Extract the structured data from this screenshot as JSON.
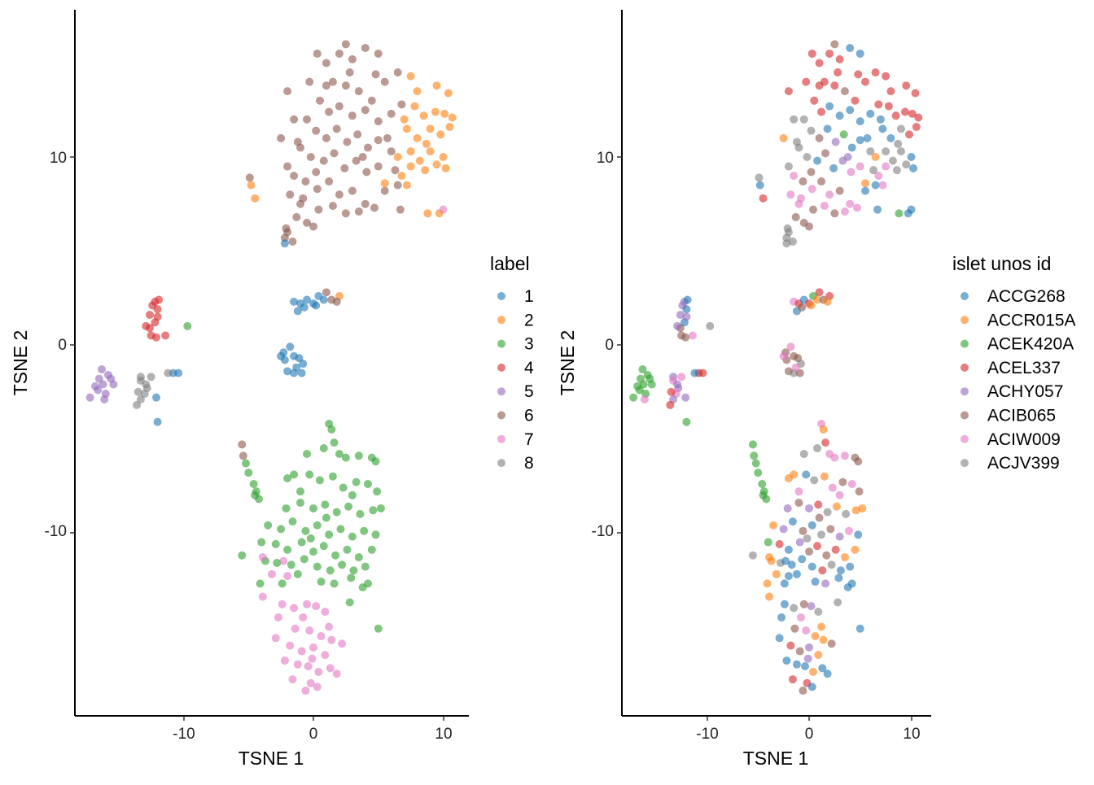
{
  "chart_data": [
    {
      "type": "scatter",
      "xlabel": "TSNE 1",
      "ylabel": "TSNE 2",
      "xlim": [
        -18.4,
        11.9
      ],
      "ylim": [
        -19.7,
        17.8
      ],
      "x_ticks": [
        "-10",
        "0",
        "10"
      ],
      "y_ticks": [
        "-10",
        "0",
        "10"
      ],
      "grid": false,
      "legend_title": "label",
      "legend": [
        "1",
        "2",
        "3",
        "4",
        "5",
        "6",
        "7",
        "8"
      ],
      "legend_placement": "right",
      "color_by": "label"
    },
    {
      "type": "scatter",
      "xlabel": "TSNE 1",
      "ylabel": "TSNE 2",
      "xlim": [
        -18.4,
        11.9
      ],
      "ylim": [
        -19.7,
        17.8
      ],
      "x_ticks": [
        "-10",
        "0",
        "10"
      ],
      "y_ticks": [
        "-10",
        "0",
        "10"
      ],
      "grid": false,
      "legend_title": "islet unos id",
      "legend": [
        "ACCG268",
        "ACCR015A",
        "ACEK420A",
        "ACEL337",
        "ACHY057",
        "ACIB065",
        "ACIW009",
        "ACJV399"
      ],
      "legend_placement": "right",
      "color_by": "islet unos id"
    }
  ],
  "colors": [
    "#1f77b4",
    "#ff7f0e",
    "#2ca02c",
    "#d62728",
    "#9467bd",
    "#8c564b",
    "#e377c2",
    "#7f7f7f"
  ],
  "point_alpha": 0.6,
  "point_fields": [
    "TSNE 1",
    "TSNE 2",
    "label",
    "islet unos id index"
  ],
  "points": [
    [
      -2,
      13.5,
      6,
      3
    ],
    [
      -1.5,
      12,
      6,
      7
    ],
    [
      -2.5,
      11,
      6,
      1
    ],
    [
      -1,
      10.5,
      6,
      7
    ],
    [
      -2,
      9.5,
      6,
      7
    ],
    [
      -1.8,
      8,
      6,
      6
    ],
    [
      -1,
      7.5,
      6,
      6
    ],
    [
      -0.5,
      6.5,
      6,
      5
    ],
    [
      -2,
      6,
      6,
      7
    ],
    [
      -2.2,
      5.7,
      6,
      7
    ],
    [
      0,
      6.3,
      6,
      5
    ],
    [
      -0.3,
      14,
      6,
      3
    ],
    [
      0.3,
      15.5,
      6,
      3
    ],
    [
      1,
      15,
      6,
      3
    ],
    [
      2,
      15.5,
      6,
      3
    ],
    [
      2.5,
      16,
      6,
      5
    ],
    [
      3,
      15.2,
      6,
      3
    ],
    [
      4,
      15.8,
      6,
      0
    ],
    [
      5,
      15.5,
      6,
      0
    ],
    [
      6.5,
      14.5,
      6,
      3
    ],
    [
      1.5,
      14,
      6,
      3
    ],
    [
      2.5,
      13.8,
      6,
      3
    ],
    [
      3.5,
      13.5,
      6,
      5
    ],
    [
      4.5,
      13,
      6,
      3
    ],
    [
      5.5,
      14,
      6,
      3
    ],
    [
      6.8,
      12.8,
      6,
      3
    ],
    [
      0.5,
      13,
      6,
      3
    ],
    [
      1.2,
      12.4,
      6,
      3
    ],
    [
      2,
      12.7,
      6,
      0
    ],
    [
      3,
      12.2,
      6,
      0
    ],
    [
      4,
      12.5,
      6,
      0
    ],
    [
      5,
      11.9,
      6,
      0
    ],
    [
      6,
      12.3,
      6,
      0
    ],
    [
      -0.5,
      12,
      6,
      7
    ],
    [
      0.2,
      11.4,
      6,
      7
    ],
    [
      1,
      11,
      6,
      5
    ],
    [
      1.8,
      11.5,
      6,
      0
    ],
    [
      2.6,
      10.8,
      6,
      4
    ],
    [
      3.4,
      11.2,
      6,
      2
    ],
    [
      4.2,
      10.5,
      6,
      0
    ],
    [
      5,
      10.9,
      6,
      0
    ],
    [
      6,
      10.3,
      6,
      7
    ],
    [
      -1.2,
      10.8,
      6,
      7
    ],
    [
      -0.2,
      10,
      6,
      7
    ],
    [
      0.8,
      9.8,
      6,
      0
    ],
    [
      1.6,
      10.2,
      6,
      5
    ],
    [
      2.4,
      9.4,
      6,
      0
    ],
    [
      3.3,
      9.8,
      6,
      4
    ],
    [
      4.1,
      9.2,
      6,
      6
    ],
    [
      5,
      9.5,
      6,
      6
    ],
    [
      6.3,
      9.3,
      6,
      7
    ],
    [
      -1.5,
      9,
      6,
      6
    ],
    [
      -0.6,
      8.7,
      6,
      5
    ],
    [
      0.3,
      8.3,
      6,
      6
    ],
    [
      1.2,
      8.7,
      6,
      5
    ],
    [
      2,
      8,
      6,
      6
    ],
    [
      3,
      8.2,
      6,
      5
    ],
    [
      4,
      7.5,
      6,
      6
    ],
    [
      5.5,
      8.2,
      6,
      0
    ],
    [
      6.5,
      8.5,
      6,
      0
    ],
    [
      -0.8,
      7.8,
      6,
      6
    ],
    [
      0.4,
      7.2,
      6,
      5
    ],
    [
      1.5,
      7.4,
      6,
      6
    ],
    [
      2.5,
      7,
      6,
      5
    ],
    [
      3.5,
      7.1,
      6,
      6
    ],
    [
      4.7,
      7.3,
      6,
      6
    ],
    [
      6.7,
      7.2,
      6,
      0
    ],
    [
      -1.3,
      6.8,
      6,
      5
    ],
    [
      -2.1,
      6.2,
      6,
      7
    ],
    [
      -1.6,
      5.5,
      6,
      7
    ],
    [
      0.2,
      9.2,
      6,
      5
    ],
    [
      1,
      13.8,
      6,
      3
    ],
    [
      2.8,
      14.5,
      6,
      3
    ],
    [
      4.8,
      14.4,
      6,
      3
    ],
    [
      3.8,
      10,
      6,
      4
    ],
    [
      5.7,
      11,
      6,
      0
    ],
    [
      -4.9,
      8.9,
      6,
      7
    ],
    [
      7.5,
      14.3,
      2,
      3
    ],
    [
      8,
      13.5,
      2,
      3
    ],
    [
      9.5,
      13.8,
      2,
      3
    ],
    [
      10.4,
      13.4,
      2,
      3
    ],
    [
      7.8,
      12.7,
      2,
      3
    ],
    [
      8.5,
      12.2,
      2,
      3
    ],
    [
      9.4,
      12.4,
      2,
      3
    ],
    [
      10.1,
      12.3,
      2,
      3
    ],
    [
      10.7,
      12.1,
      2,
      3
    ],
    [
      7.2,
      11.5,
      2,
      0
    ],
    [
      8,
      11,
      2,
      0
    ],
    [
      9,
      11.5,
      2,
      7
    ],
    [
      9.8,
      11.2,
      2,
      3
    ],
    [
      10.5,
      11.6,
      2,
      3
    ],
    [
      6.5,
      10,
      2,
      1
    ],
    [
      7.5,
      10.3,
      2,
      7
    ],
    [
      8.2,
      9.8,
      2,
      7
    ],
    [
      9,
      10.3,
      2,
      7
    ],
    [
      10,
      10,
      2,
      0
    ],
    [
      6.8,
      9,
      2,
      6
    ],
    [
      7.5,
      9.5,
      2,
      6
    ],
    [
      8.6,
      9.3,
      2,
      7
    ],
    [
      5.5,
      8.6,
      2,
      1
    ],
    [
      7.2,
      8.5,
      2,
      6
    ],
    [
      10.2,
      9.4,
      2,
      0
    ],
    [
      7,
      12,
      2,
      0
    ],
    [
      8.7,
      10.7,
      2,
      7
    ],
    [
      9.5,
      9.6,
      2,
      7
    ],
    [
      -4.8,
      8.5,
      2,
      0
    ],
    [
      -4.5,
      7.8,
      2,
      3
    ],
    [
      8.8,
      7,
      2,
      2
    ],
    [
      9.7,
      7,
      2,
      0
    ],
    [
      2,
      2.6,
      2,
      3
    ],
    [
      10,
      7.2,
      7,
      0
    ],
    [
      -2.2,
      5.4,
      1,
      7
    ],
    [
      -1.5,
      2.3,
      1,
      6
    ],
    [
      -1,
      2.2,
      1,
      3
    ],
    [
      -0.5,
      2.4,
      1,
      0
    ],
    [
      0,
      2.2,
      1,
      3
    ],
    [
      0.4,
      2.6,
      1,
      2
    ],
    [
      0.8,
      2.4,
      1,
      1
    ],
    [
      -1.2,
      1.8,
      1,
      0
    ],
    [
      -0.7,
      2.0,
      1,
      5
    ],
    [
      0.2,
      2.1,
      1,
      1
    ],
    [
      1,
      2.8,
      6,
      3
    ],
    [
      1.4,
      2.4,
      6,
      5
    ],
    [
      1.8,
      2.3,
      6,
      1
    ],
    [
      -2.3,
      -0.4,
      1,
      5
    ],
    [
      -1.8,
      -0.1,
      1,
      6
    ],
    [
      -2.2,
      -0.8,
      1,
      5
    ],
    [
      -1.5,
      -0.6,
      1,
      5
    ],
    [
      -1.1,
      -0.7,
      1,
      5
    ],
    [
      -0.8,
      -1,
      1,
      7
    ],
    [
      -2,
      -1.4,
      1,
      5
    ],
    [
      -1.5,
      -1.5,
      1,
      7
    ],
    [
      -0.9,
      -1.5,
      1,
      5
    ],
    [
      -1.3,
      -1.2,
      1,
      6
    ],
    [
      -2.5,
      -0.6,
      1,
      6
    ],
    [
      -12,
      -4.1,
      1,
      2
    ],
    [
      -10.8,
      -1.5,
      1,
      3
    ],
    [
      -10.4,
      -1.5,
      1,
      3
    ],
    [
      -12.1,
      -2.8,
      1,
      4
    ],
    [
      -12.2,
      2.3,
      4,
      4
    ],
    [
      -11.9,
      2.4,
      4,
      0
    ],
    [
      -12.4,
      2.1,
      4,
      4
    ],
    [
      -12,
      1.9,
      4,
      0
    ],
    [
      -12.6,
      1.6,
      4,
      4
    ],
    [
      -12.2,
      1.2,
      4,
      0
    ],
    [
      -12.6,
      0.9,
      4,
      5
    ],
    [
      -12.9,
      1.0,
      4,
      4
    ],
    [
      -12.5,
      0.5,
      4,
      5
    ],
    [
      -12.1,
      0.4,
      4,
      5
    ],
    [
      -11.4,
      0.5,
      4,
      6
    ],
    [
      -12,
      1.5,
      4,
      4
    ],
    [
      -9.7,
      1.0,
      3,
      7
    ],
    [
      -16.3,
      -1.3,
      5,
      2
    ],
    [
      -15.8,
      -1.6,
      5,
      2
    ],
    [
      -16.5,
      -1.8,
      5,
      2
    ],
    [
      -16.2,
      -2.1,
      5,
      2
    ],
    [
      -16.6,
      -2.4,
      5,
      2
    ],
    [
      -16,
      -2.6,
      5,
      2
    ],
    [
      -15.4,
      -2.1,
      5,
      2
    ],
    [
      -17.2,
      -2.8,
      5,
      2
    ],
    [
      -16.1,
      -2.9,
      5,
      6
    ],
    [
      -16.8,
      -2.2,
      5,
      2
    ],
    [
      -15.6,
      -1.8,
      5,
      2
    ],
    [
      -13.3,
      -1.7,
      8,
      4
    ],
    [
      -13.3,
      -1.9,
      8,
      6
    ],
    [
      -12.5,
      -1.7,
      8,
      6
    ],
    [
      -12.8,
      -2.3,
      8,
      4
    ],
    [
      -13,
      -2.6,
      8,
      6
    ],
    [
      -13.3,
      -2.9,
      8,
      4
    ],
    [
      -13.6,
      -3.2,
      8,
      3
    ],
    [
      -12.9,
      -2.1,
      8,
      4
    ],
    [
      -13.5,
      -2.5,
      8,
      3
    ],
    [
      -11.2,
      -1.5,
      8,
      0
    ],
    [
      -5.5,
      -5.3,
      6,
      2
    ],
    [
      -5.4,
      -5.9,
      6,
      2
    ],
    [
      -5.2,
      -6.3,
      3,
      2
    ],
    [
      -5,
      -6.8,
      3,
      2
    ],
    [
      -4.6,
      -7.4,
      3,
      2
    ],
    [
      -4.4,
      -7.8,
      3,
      2
    ],
    [
      -4.2,
      -8.2,
      3,
      2
    ],
    [
      -4.5,
      -8.0,
      3,
      2
    ],
    [
      -5.5,
      -11.2,
      3,
      7
    ],
    [
      1.2,
      -4.2,
      3,
      6
    ],
    [
      1.4,
      -4.5,
      3,
      1
    ],
    [
      0.8,
      -5.5,
      3,
      7
    ],
    [
      1.6,
      -5.2,
      3,
      3
    ],
    [
      -0.5,
      -5.8,
      3,
      7
    ],
    [
      2.5,
      -6,
      3,
      6
    ],
    [
      3.5,
      -5.9,
      3,
      6
    ],
    [
      4.5,
      -6,
      3,
      5
    ],
    [
      4.8,
      -6.2,
      3,
      5
    ],
    [
      -1.5,
      -6.9,
      3,
      1
    ],
    [
      -2,
      -7.1,
      3,
      1
    ],
    [
      -0.3,
      -6.9,
      3,
      0
    ],
    [
      0.5,
      -7.2,
      3,
      7
    ],
    [
      1.5,
      -7,
      3,
      1
    ],
    [
      2.3,
      -7.6,
      3,
      6
    ],
    [
      3.3,
      -7.3,
      3,
      5
    ],
    [
      4.2,
      -7.4,
      3,
      6
    ],
    [
      4.9,
      -7.8,
      3,
      5
    ],
    [
      -2.1,
      -8.7,
      3,
      4
    ],
    [
      -1,
      -8.4,
      3,
      5
    ],
    [
      0,
      -8.7,
      3,
      4
    ],
    [
      0.9,
      -8.5,
      3,
      3
    ],
    [
      1.8,
      -8.9,
      3,
      7
    ],
    [
      2.7,
      -8.6,
      3,
      1
    ],
    [
      3.6,
      -9,
      3,
      7
    ],
    [
      4.6,
      -8.8,
      3,
      1
    ],
    [
      5.2,
      -8.7,
      3,
      1
    ],
    [
      -3.5,
      -9.6,
      3,
      1
    ],
    [
      -2.5,
      -9.8,
      3,
      4
    ],
    [
      -1.6,
      -9.4,
      3,
      0
    ],
    [
      -0.6,
      -9.9,
      3,
      5
    ],
    [
      0.3,
      -9.6,
      3,
      0
    ],
    [
      1.2,
      -10.1,
      3,
      7
    ],
    [
      2.1,
      -9.8,
      3,
      5
    ],
    [
      3,
      -10.2,
      3,
      4
    ],
    [
      3.9,
      -9.9,
      3,
      6
    ],
    [
      4.8,
      -10.1,
      3,
      0
    ],
    [
      -4,
      -10.5,
      3,
      2
    ],
    [
      -2.9,
      -10.6,
      3,
      3
    ],
    [
      -2,
      -10.9,
      3,
      0
    ],
    [
      -0.9,
      -10.5,
      3,
      4
    ],
    [
      0,
      -11,
      3,
      5
    ],
    [
      0.8,
      -10.7,
      3,
      3
    ],
    [
      1.7,
      -11.2,
      3,
      5
    ],
    [
      2.6,
      -10.9,
      3,
      3
    ],
    [
      3.5,
      -11.3,
      3,
      1
    ],
    [
      4.5,
      -10.9,
      3,
      1
    ],
    [
      -3.7,
      -11.5,
      3,
      1
    ],
    [
      -2.8,
      -11.6,
      3,
      7
    ],
    [
      -1.7,
      -11.7,
      3,
      0
    ],
    [
      -0.7,
      -11.4,
      3,
      0
    ],
    [
      0.3,
      -11.8,
      3,
      0
    ],
    [
      1.3,
      -12,
      3,
      3
    ],
    [
      2.2,
      -11.7,
      3,
      7
    ],
    [
      3.1,
      -12,
      3,
      0
    ],
    [
      4,
      -11.8,
      3,
      0
    ],
    [
      -4.1,
      -12.7,
      3,
      1
    ],
    [
      -2.4,
      -12.7,
      3,
      0
    ],
    [
      -1.2,
      -12.2,
      3,
      0
    ],
    [
      0.6,
      -12.6,
      3,
      0
    ],
    [
      1.6,
      -12.7,
      3,
      4
    ],
    [
      2.9,
      -12.4,
      3,
      0
    ],
    [
      3.8,
      -12.9,
      3,
      0
    ],
    [
      4.2,
      -12.7,
      3,
      0
    ],
    [
      2.8,
      -13.7,
      3,
      7
    ],
    [
      5,
      -15.1,
      3,
      0
    ],
    [
      -1,
      -7.8,
      3,
      6
    ],
    [
      2,
      -5.8,
      3,
      6
    ],
    [
      3,
      -8,
      3,
      6
    ],
    [
      -0.2,
      -10.3,
      3,
      7
    ],
    [
      1,
      -9.2,
      3,
      5
    ],
    [
      -2.3,
      -11.5,
      7,
      0
    ],
    [
      -3.2,
      -12.2,
      7,
      1
    ],
    [
      -2,
      -12.3,
      7,
      0
    ],
    [
      -3.9,
      -13.4,
      7,
      1
    ],
    [
      -2.4,
      -13.8,
      7,
      0
    ],
    [
      -1.5,
      -14,
      7,
      7
    ],
    [
      -0.5,
      -13.8,
      7,
      5
    ],
    [
      0.2,
      -13.9,
      7,
      4
    ],
    [
      0.9,
      -14.2,
      7,
      7
    ],
    [
      -0.8,
      -14.5,
      7,
      6
    ],
    [
      1.2,
      -15,
      7,
      1
    ],
    [
      -2.7,
      -14.5,
      7,
      0
    ],
    [
      -1.4,
      -15.1,
      7,
      5
    ],
    [
      -0.3,
      -15.2,
      7,
      6
    ],
    [
      0.6,
      -15.5,
      7,
      1
    ],
    [
      1.4,
      -15.7,
      7,
      1
    ],
    [
      -2.9,
      -15.6,
      7,
      0
    ],
    [
      -1.8,
      -16,
      7,
      3
    ],
    [
      -0.9,
      -16.3,
      7,
      5
    ],
    [
      0,
      -16.1,
      7,
      4
    ],
    [
      0.9,
      -16.5,
      7,
      1
    ],
    [
      2.2,
      -15.9,
      7,
      5
    ],
    [
      -2.2,
      -16.8,
      7,
      0
    ],
    [
      -1.2,
      -17,
      7,
      0
    ],
    [
      -0.4,
      -17.1,
      7,
      0
    ],
    [
      0.4,
      -17.4,
      7,
      1
    ],
    [
      1.3,
      -17.2,
      7,
      0
    ],
    [
      1.8,
      -17.5,
      7,
      0
    ],
    [
      -0.2,
      -18,
      7,
      3
    ],
    [
      -0.6,
      -18.4,
      7,
      5
    ],
    [
      0.3,
      -18.2,
      7,
      0
    ],
    [
      -1.6,
      -17.8,
      7,
      3
    ],
    [
      -0.1,
      -16.7,
      7,
      4
    ],
    [
      -3.9,
      -11.3,
      7,
      1
    ]
  ]
}
